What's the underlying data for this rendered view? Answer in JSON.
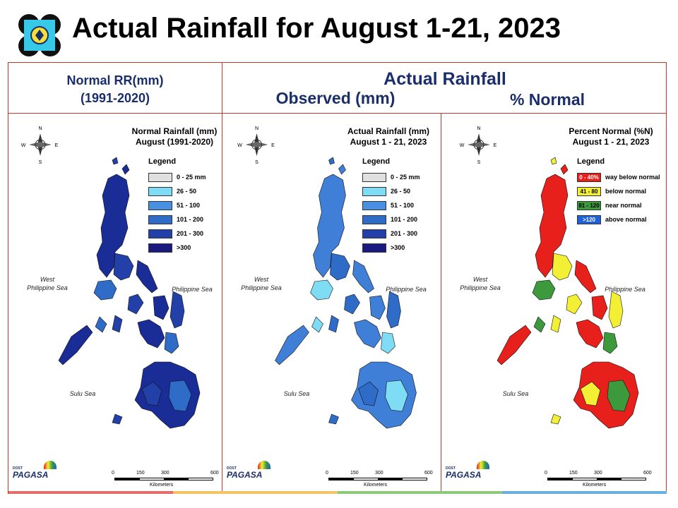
{
  "title": "Actual Rainfall for August 1-21, 2023",
  "header": {
    "normal_line1": "Normal RR(mm)",
    "normal_line2": "(1991-2020)",
    "actual": "Actual Rainfall",
    "observed": "Observed (mm)",
    "percent": "% Normal"
  },
  "panels": [
    {
      "title_line1": "Normal Rainfall (mm)",
      "title_line2": "August (1991-2020)",
      "legend_title": "Legend",
      "legend": [
        {
          "label": "0 - 25 mm",
          "color": "#e0e0e0"
        },
        {
          "label": "26 - 50",
          "color": "#7fdcf5"
        },
        {
          "label": "51 - 100",
          "color": "#4a90e2"
        },
        {
          "label": "101 - 200",
          "color": "#2f6cc8"
        },
        {
          "label": "201 - 300",
          "color": "#2240a8"
        },
        {
          "label": ">300",
          "color": "#1a1a80"
        }
      ],
      "map_fill": [
        "#1a2c95",
        "#2240a8",
        "#2f6cc8"
      ],
      "seas": {
        "west1": "West",
        "west2": "Philippine Sea",
        "east": "Philippine Sea",
        "south": "Sulu Sea"
      },
      "scale": [
        "0",
        "150",
        "300",
        "600"
      ],
      "scale_unit": "Kilometers"
    },
    {
      "title_line1": "Actual Rainfall (mm)",
      "title_line2": "August 1 - 21, 2023",
      "legend_title": "Legend",
      "legend": [
        {
          "label": "0 - 25 mm",
          "color": "#e0e0e0"
        },
        {
          "label": "26 - 50",
          "color": "#7fdcf5"
        },
        {
          "label": "51 - 100",
          "color": "#4a90e2"
        },
        {
          "label": "101 - 200",
          "color": "#2f6cc8"
        },
        {
          "label": "201 - 300",
          "color": "#2240a8"
        },
        {
          "label": ">300",
          "color": "#1a1a80"
        }
      ],
      "map_fill": [
        "#3f7fd8",
        "#2f6cc8",
        "#7fdcf5"
      ],
      "seas": {
        "west1": "West",
        "west2": "Philippine Sea",
        "east": "Philippine Sea",
        "south": "Sulu Sea"
      },
      "scale": [
        "0",
        "150",
        "300",
        "600"
      ],
      "scale_unit": "Kilometers"
    },
    {
      "title_line1": "Percent Normal (%N)",
      "title_line2": "August 1 - 21, 2023",
      "legend_title": "Legend",
      "legend": [
        {
          "swatch": "0 - 40%",
          "label": "way below normal",
          "color": "#e8201c"
        },
        {
          "swatch": "41 - 80",
          "label": "below normal",
          "color": "#f2ef35"
        },
        {
          "swatch": "81 - 120",
          "label": "near normal",
          "color": "#3c9a3c"
        },
        {
          "swatch": ">120",
          "label": "above normal",
          "color": "#2060d8"
        }
      ],
      "map_fill": [
        "#e8201c",
        "#f2ef35",
        "#3c9a3c"
      ],
      "seas": {
        "west1": "West",
        "west2": "Philippine Sea",
        "east": "Philippine Sea",
        "south": "Sulu Sea"
      },
      "scale": [
        "0",
        "150",
        "300",
        "600"
      ],
      "scale_unit": "Kilometers"
    }
  ],
  "brand": {
    "line1": "DOST",
    "name": "PAGASA"
  },
  "compass": {
    "n": "N",
    "s": "S",
    "e": "E",
    "w": "W"
  },
  "footer_colors": [
    "#e46c6c",
    "#f5c463",
    "#8cc97a",
    "#6baee0"
  ]
}
